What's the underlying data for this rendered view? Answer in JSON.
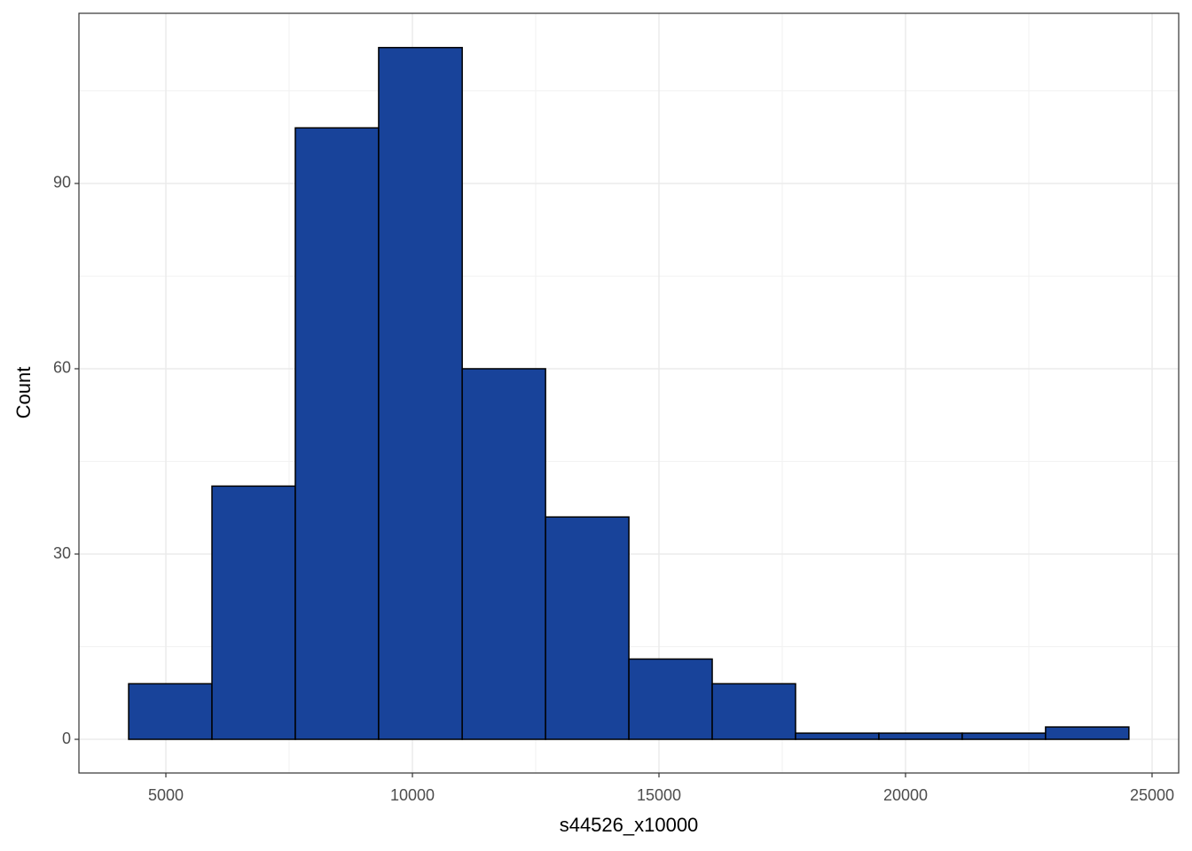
{
  "chart_data": {
    "type": "histogram",
    "x_label": "s44526_x10000",
    "y_label": "Count",
    "bins": [
      4245,
      5935,
      7625,
      9315,
      11010,
      12700,
      14390,
      16080,
      17770,
      19460,
      21150,
      22840,
      24530
    ],
    "values": [
      9,
      41,
      99,
      112,
      60,
      36,
      13,
      9,
      1,
      1,
      1,
      2
    ],
    "color": "#18439a",
    "xlim": [
      3237,
      25540
    ],
    "xticks": [
      5000,
      10000,
      15000,
      20000,
      25000
    ],
    "ylim": [
      -5.45,
      117.55
    ],
    "yticks": [
      0,
      30,
      60,
      90
    ],
    "grid": true
  }
}
